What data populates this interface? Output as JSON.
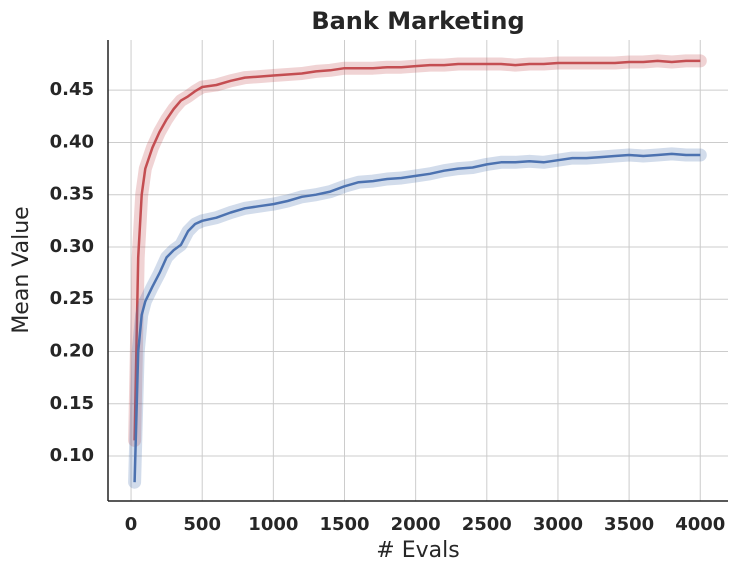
{
  "chart_data": {
    "type": "line",
    "title": "Bank Marketing",
    "x_label": "# Evals",
    "y_label": "Mean Value",
    "x": [
      25,
      50,
      75,
      100,
      150,
      200,
      250,
      300,
      350,
      400,
      450,
      500,
      600,
      700,
      800,
      900,
      1000,
      1100,
      1200,
      1300,
      1400,
      1500,
      1600,
      1700,
      1800,
      1900,
      2000,
      2100,
      2200,
      2300,
      2400,
      2500,
      2600,
      2700,
      2800,
      2900,
      3000,
      3100,
      3200,
      3300,
      3400,
      3500,
      3600,
      3700,
      3800,
      3900,
      4000
    ],
    "series": [
      {
        "color": "#c44e52",
        "values": [
          0.115,
          0.29,
          0.35,
          0.375,
          0.395,
          0.41,
          0.422,
          0.432,
          0.44,
          0.444,
          0.449,
          0.453,
          0.455,
          0.459,
          0.462,
          0.463,
          0.464,
          0.465,
          0.466,
          0.468,
          0.469,
          0.471,
          0.471,
          0.471,
          0.472,
          0.472,
          0.473,
          0.474,
          0.474,
          0.475,
          0.475,
          0.475,
          0.475,
          0.474,
          0.475,
          0.475,
          0.476,
          0.476,
          0.476,
          0.476,
          0.476,
          0.477,
          0.477,
          0.478,
          0.477,
          0.478,
          0.478
        ]
      },
      {
        "color": "#4c72b0",
        "values": [
          0.075,
          0.2,
          0.235,
          0.248,
          0.262,
          0.275,
          0.29,
          0.297,
          0.302,
          0.315,
          0.322,
          0.325,
          0.328,
          0.333,
          0.337,
          0.339,
          0.341,
          0.344,
          0.348,
          0.35,
          0.353,
          0.358,
          0.362,
          0.363,
          0.365,
          0.366,
          0.368,
          0.37,
          0.373,
          0.375,
          0.376,
          0.379,
          0.381,
          0.381,
          0.382,
          0.381,
          0.383,
          0.385,
          0.385,
          0.386,
          0.387,
          0.388,
          0.387,
          0.388,
          0.389,
          0.388,
          0.388
        ]
      }
    ],
    "xlim": [
      -162,
      4195
    ],
    "ylim": [
      0.057,
      0.498
    ],
    "xticks": [
      0,
      500,
      1000,
      1500,
      2000,
      2500,
      3000,
      3500,
      4000
    ],
    "yticks": [
      {
        "value": 0.1,
        "label": "0.10"
      },
      0.15,
      {
        "value": 0.2,
        "label": "0.20"
      },
      0.25,
      {
        "value": 0.3,
        "label": "0.30"
      },
      0.35,
      {
        "value": 0.4,
        "label": "0.40"
      },
      0.45
    ],
    "grid": true
  }
}
